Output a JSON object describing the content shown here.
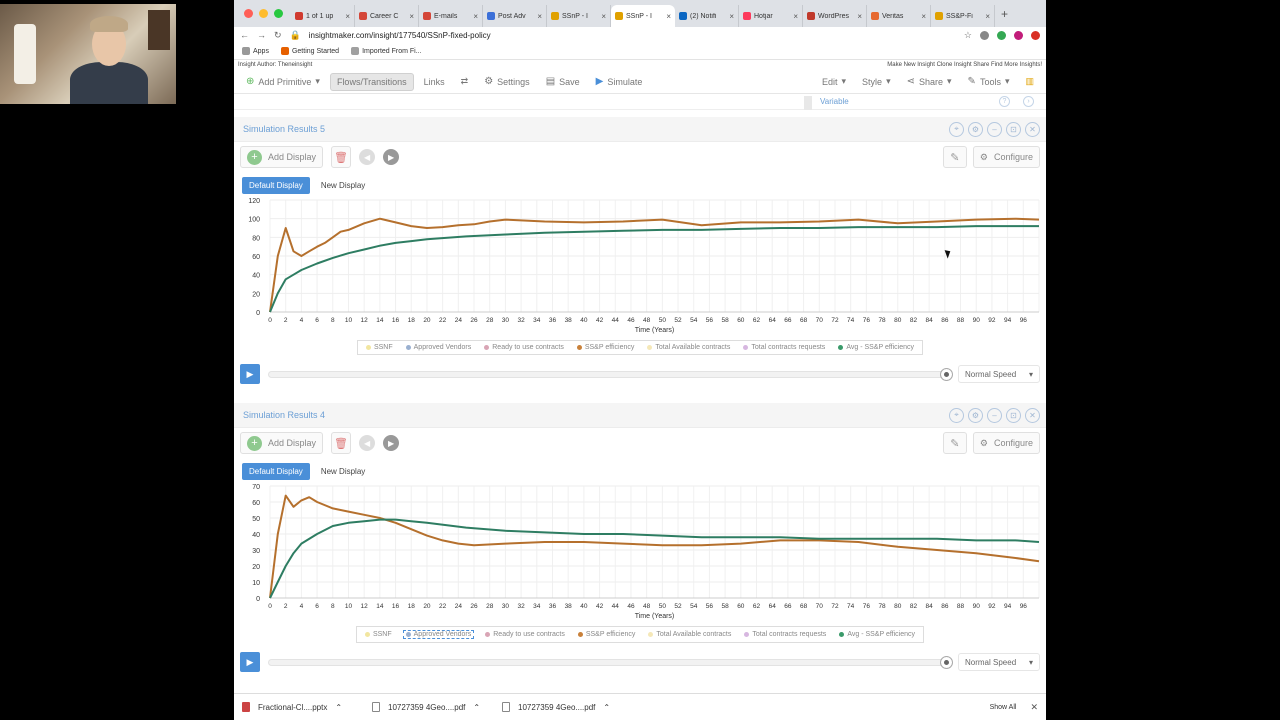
{
  "browser": {
    "tabs": [
      {
        "label": "1 of 1 up",
        "color": "#d03a2f"
      },
      {
        "label": "Career C",
        "color": "#d44638"
      },
      {
        "label": "E-mails",
        "color": "#d44638"
      },
      {
        "label": "Post Adv",
        "color": "#3b6fd8"
      },
      {
        "label": "SSnP - I",
        "color": "#e0a100"
      },
      {
        "label": "SSnP - I",
        "color": "#e0a100",
        "active": true
      },
      {
        "label": "(2) Notifi",
        "color": "#0a66c2"
      },
      {
        "label": "Hotjar",
        "color": "#fd3a5c"
      },
      {
        "label": "WordPres",
        "color": "#c0392b"
      },
      {
        "label": "Veritas",
        "color": "#e6692f"
      },
      {
        "label": "SS&P-Fi",
        "color": "#e0a100"
      }
    ],
    "url": "insightmaker.com/insight/177540/SSnP-fixed-policy",
    "bookmarks": [
      "Apps",
      "Getting Started",
      "Imported From Fi..."
    ]
  },
  "insight": {
    "left_note": "Insight Author: Theneinsight",
    "right_note": "Make New Insight Clone Insight Share Find More Insights!"
  },
  "toolbar": {
    "add_primitive": "Add Primitive",
    "flows": "Flows/Transitions",
    "links": "Links",
    "settings": "Settings",
    "save": "Save",
    "simulate": "Simulate",
    "edit": "Edit",
    "style": "Style",
    "share": "Share",
    "tools": "Tools"
  },
  "variable_label": "Variable",
  "panels": [
    {
      "title": "Simulation Results 5",
      "add_display": "Add Display",
      "configure": "Configure",
      "tabs": [
        "Default Display",
        "New Display"
      ],
      "legend": [
        {
          "label": "SSNF",
          "color": "#f2e6a0"
        },
        {
          "label": "Approved Vendors",
          "color": "#9ab0d0"
        },
        {
          "label": "Ready to use contracts",
          "color": "#d9a5b5"
        },
        {
          "label": "SS&P efficiency",
          "color": "#c9813a"
        },
        {
          "label": "Total Available contracts",
          "color": "#f5e8b8"
        },
        {
          "label": "Total contracts requests",
          "color": "#d7b7e0"
        },
        {
          "label": "Avg - SS&P efficiency",
          "color": "#3a9a6a"
        }
      ],
      "speed": "Normal Speed"
    },
    {
      "title": "Simulation Results 4",
      "add_display": "Add Display",
      "configure": "Configure",
      "tabs": [
        "Default Display",
        "New Display"
      ],
      "legend": [
        {
          "label": "SSNF",
          "color": "#f2e6a0"
        },
        {
          "label": "Approved Vendors",
          "color": "#9ab0d0",
          "selected": true
        },
        {
          "label": "Ready to use contracts",
          "color": "#d9a5b5"
        },
        {
          "label": "SS&P efficiency",
          "color": "#c9813a"
        },
        {
          "label": "Total Available contracts",
          "color": "#f5e8b8"
        },
        {
          "label": "Total contracts requests",
          "color": "#d7b7e0"
        },
        {
          "label": "Avg - SS&P efficiency",
          "color": "#3a9a6a"
        }
      ],
      "speed": "Normal Speed"
    }
  ],
  "chart_data": [
    {
      "type": "line",
      "xlabel": "Time (Years)",
      "ylabel": "",
      "xlim": [
        0,
        98
      ],
      "ylim": [
        0,
        120
      ],
      "yticks": [
        0,
        20,
        40,
        60,
        80,
        100,
        120
      ],
      "series": [
        {
          "name": "SS&P efficiency",
          "color": "#b5702d",
          "x": [
            0,
            1,
            2,
            3,
            4,
            5,
            6,
            7,
            8,
            9,
            10,
            12,
            14,
            16,
            18,
            20,
            22,
            24,
            26,
            28,
            30,
            35,
            40,
            45,
            50,
            55,
            60,
            65,
            70,
            75,
            80,
            85,
            90,
            95,
            98
          ],
          "y": [
            0,
            60,
            90,
            65,
            60,
            65,
            70,
            74,
            80,
            86,
            88,
            95,
            100,
            96,
            92,
            90,
            91,
            93,
            94,
            97,
            99,
            97,
            96,
            97,
            99,
            93,
            96,
            96,
            97,
            99,
            95,
            97,
            99,
            100,
            99
          ]
        },
        {
          "name": "Avg - SS&P efficiency",
          "color": "#2e7d62",
          "x": [
            0,
            1,
            2,
            3,
            4,
            6,
            8,
            10,
            12,
            14,
            16,
            18,
            20,
            25,
            30,
            35,
            40,
            45,
            50,
            55,
            60,
            65,
            70,
            75,
            80,
            85,
            90,
            95,
            98
          ],
          "y": [
            0,
            20,
            35,
            40,
            45,
            52,
            58,
            63,
            67,
            71,
            74,
            76,
            78,
            81,
            83,
            85,
            86,
            87,
            88,
            88,
            89,
            90,
            90,
            91,
            91,
            91,
            92,
            92,
            92
          ]
        }
      ]
    },
    {
      "type": "line",
      "xlabel": "Time (Years)",
      "ylabel": "",
      "xlim": [
        0,
        98
      ],
      "ylim": [
        0,
        70
      ],
      "yticks": [
        0,
        10,
        20,
        30,
        40,
        50,
        60,
        70
      ],
      "series": [
        {
          "name": "SS&P efficiency",
          "color": "#b5702d",
          "x": [
            0,
            1,
            2,
            3,
            4,
            5,
            6,
            8,
            10,
            12,
            14,
            16,
            18,
            20,
            22,
            24,
            26,
            30,
            35,
            40,
            45,
            50,
            55,
            60,
            65,
            70,
            75,
            80,
            85,
            90,
            95,
            98
          ],
          "y": [
            0,
            40,
            64,
            57,
            61,
            63,
            60,
            56,
            54,
            52,
            50,
            47,
            43,
            39,
            36,
            34,
            33,
            34,
            35,
            35,
            34,
            33,
            33,
            34,
            36,
            36,
            35,
            32,
            30,
            28,
            25,
            23
          ]
        },
        {
          "name": "Avg - SS&P efficiency",
          "color": "#2e7d62",
          "x": [
            0,
            1,
            2,
            3,
            4,
            6,
            8,
            10,
            12,
            14,
            16,
            18,
            20,
            25,
            30,
            35,
            40,
            45,
            50,
            55,
            60,
            65,
            70,
            75,
            80,
            85,
            90,
            95,
            98
          ],
          "y": [
            0,
            10,
            20,
            28,
            34,
            40,
            45,
            47,
            48,
            49,
            49,
            48,
            47,
            44,
            42,
            41,
            40,
            40,
            39,
            38,
            38,
            38,
            37,
            37,
            37,
            37,
            36,
            36,
            35
          ]
        }
      ]
    }
  ],
  "downloads": {
    "items": [
      "Fractional-Cl....pptx",
      "10727359 4Geo....pdf",
      "10727359 4Geo....pdf"
    ],
    "show_all": "Show All"
  }
}
